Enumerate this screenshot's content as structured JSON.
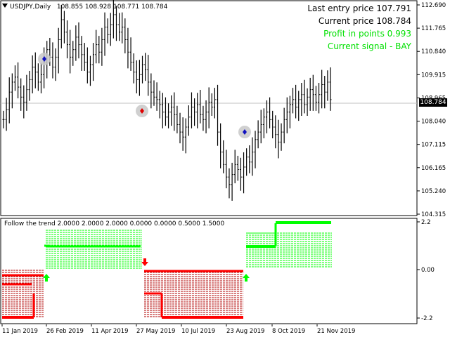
{
  "chart": {
    "symbol_timeframe": "USDJPY,Daily",
    "ohlc": "108.855 108.928 108.771 108.784",
    "current_price_tag": "108.784"
  },
  "hud": {
    "last_entry": "Last entry price 107.791",
    "current_price": "Current price 108.784",
    "profit": "Profit in points 0.993",
    "signal": "Current signal - BAY",
    "colors": {
      "info": "#000000",
      "signal": "#00e000"
    }
  },
  "price_axis": {
    "labels": [
      "112.690",
      "111.765",
      "110.840",
      "109.915",
      "108.965",
      "108.040",
      "107.115",
      "106.165",
      "105.240",
      "104.315"
    ]
  },
  "indicator": {
    "title": "Follow the trend",
    "params": "2.0000 2.0000 2.0000 0.0000 0.0000 0.5000 1.5000",
    "axis_labels": [
      "2.2",
      "0.00",
      "-2.2"
    ],
    "colors": {
      "up": "#00ff00",
      "down": "#ff0000",
      "down_fill": "#b00000"
    }
  },
  "time_axis": {
    "labels": [
      "11 Jan 2019",
      "26 Feb 2019",
      "11 Apr 2019",
      "27 May 2019",
      "10 Jul 2019",
      "23 Aug 2019",
      "8 Oct 2019",
      "21 Nov 2019"
    ]
  },
  "chart_data": {
    "type": "line",
    "title": "USDJPY,Daily",
    "ylim": [
      104.0,
      112.9
    ],
    "series": [
      {
        "name": "USDJPY",
        "values": [
          108.1,
          108.5,
          109.2,
          109.6,
          109.8,
          109.4,
          109.0,
          108.8,
          109.3,
          109.7,
          110.2,
          110.0,
          109.6,
          109.9,
          110.4,
          110.9,
          110.6,
          110.2,
          110.6,
          111.3,
          112.1,
          111.6,
          111.1,
          110.6,
          110.9,
          111.4,
          111.1,
          110.7,
          110.4,
          110.0,
          110.3,
          110.7,
          111.1,
          110.8,
          111.3,
          111.8,
          111.5,
          111.9,
          112.3,
          111.9,
          111.6,
          111.8,
          111.3,
          110.8,
          110.4,
          110.0,
          109.7,
          109.9,
          110.3,
          110.1,
          109.6,
          109.2,
          109.0,
          108.9,
          108.7,
          108.4,
          108.2,
          108.4,
          108.6,
          108.3,
          107.9,
          107.6,
          107.4,
          107.8,
          108.2,
          108.6,
          108.4,
          108.7,
          108.3,
          108.1,
          108.4,
          108.8,
          108.6,
          108.9,
          107.6,
          106.8,
          106.3,
          105.8,
          105.5,
          105.9,
          106.3,
          106.1,
          105.8,
          106.2,
          106.6,
          106.4,
          106.8,
          107.3,
          107.6,
          107.9,
          108.2,
          108.4,
          108.1,
          107.8,
          107.5,
          107.2,
          107.6,
          108.1,
          108.4,
          108.7,
          108.9,
          108.6,
          108.9,
          109.1,
          108.7,
          109.0,
          109.3,
          109.1,
          108.8,
          109.1,
          109.5,
          109.2,
          109.6,
          108.9
        ]
      }
    ]
  }
}
